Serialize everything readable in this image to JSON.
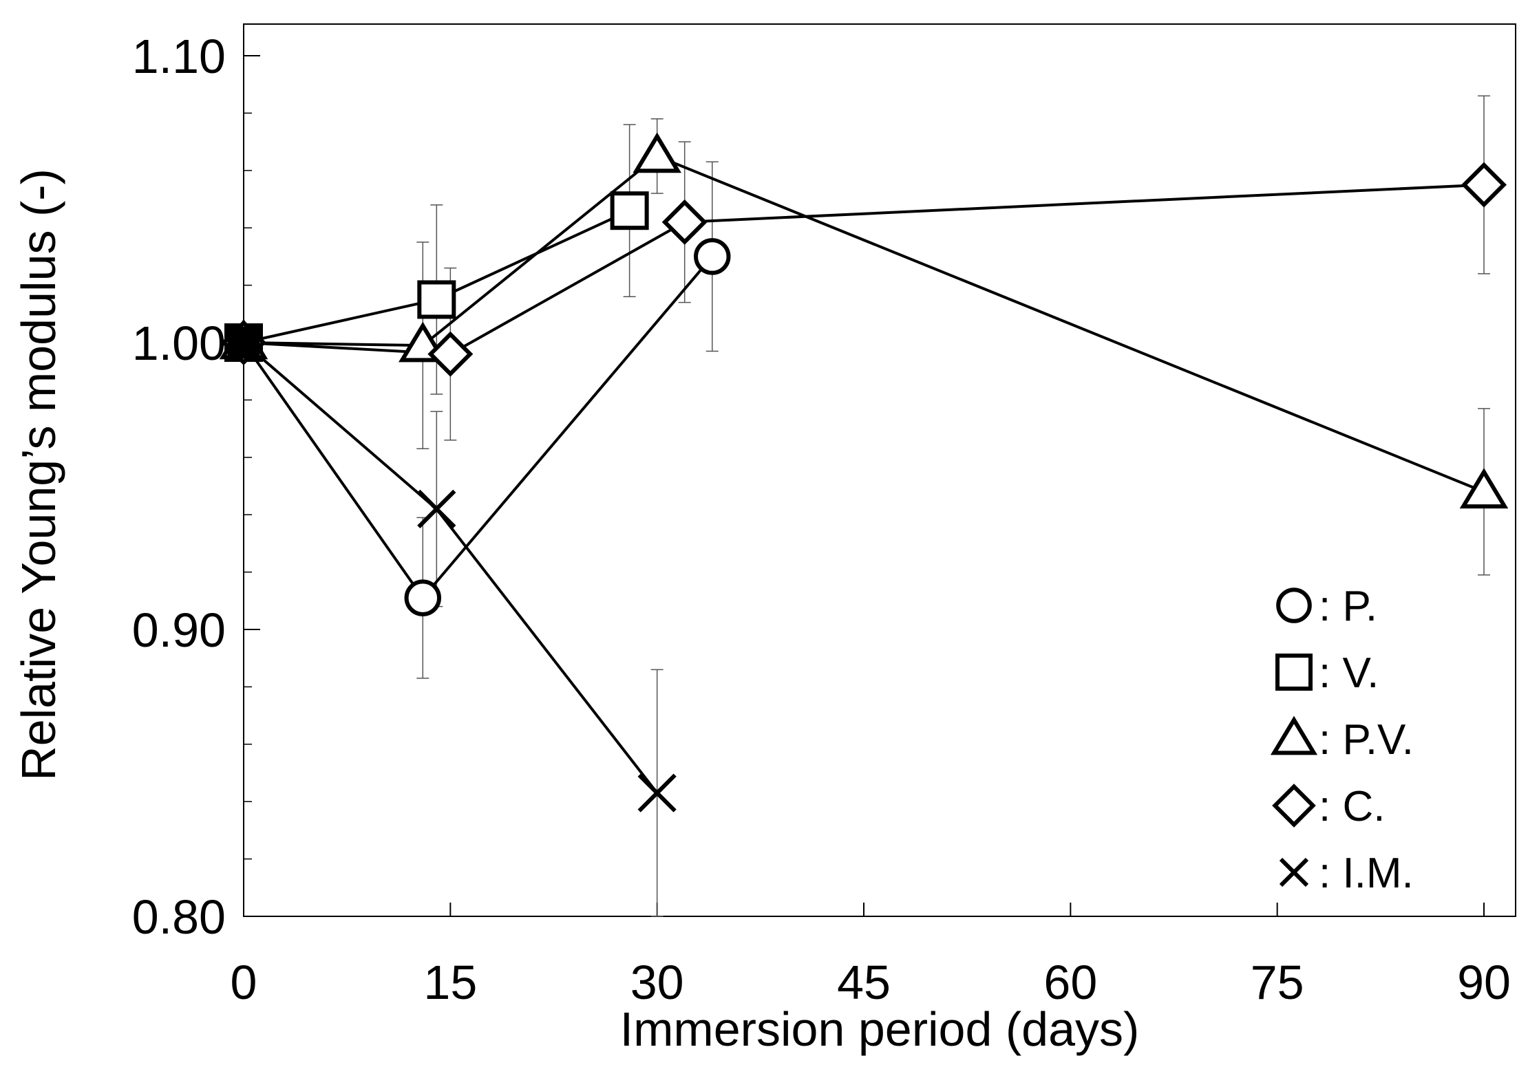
{
  "chart_data": {
    "type": "scatter",
    "title": "",
    "xlabel": "Immersion period (days)",
    "ylabel": "Relative Young’s modulus (-)",
    "xlim": [
      0,
      91
    ],
    "ylim": [
      0.8,
      1.1
    ],
    "xticks": [
      0,
      15,
      30,
      45,
      60,
      75,
      90
    ],
    "xtick_labels": [
      "0",
      "15",
      "30",
      "45",
      "60",
      "75",
      "90"
    ],
    "yticks": [
      0.8,
      0.9,
      1.0,
      1.1
    ],
    "ytick_labels": [
      "0.80",
      "0.90",
      "1.00",
      "1.10"
    ],
    "y_minor_step": 0.02,
    "grid": false,
    "legend_position": "bottom-right",
    "series": [
      {
        "name": "P.",
        "legend": ": P.",
        "marker": "circle",
        "x": [
          0,
          13,
          34
        ],
        "y": [
          1.0,
          0.911,
          1.03
        ],
        "err": [
          0,
          0.028,
          0.033
        ]
      },
      {
        "name": "V.",
        "legend": ": V.",
        "marker": "square",
        "x": [
          0,
          14,
          28
        ],
        "y": [
          1.0,
          1.015,
          1.046
        ],
        "err": [
          0,
          0.033,
          0.03
        ]
      },
      {
        "name": "P.V.",
        "legend": ": P.V.",
        "marker": "triangle",
        "x": [
          0,
          13,
          30,
          90
        ],
        "y": [
          1.0,
          0.999,
          1.065,
          0.948
        ],
        "err": [
          0,
          0.036,
          0.013,
          0.029
        ]
      },
      {
        "name": "C.",
        "legend": ": C.",
        "marker": "diamond",
        "x": [
          0,
          15,
          32,
          90
        ],
        "y": [
          1.0,
          0.996,
          1.042,
          1.055
        ],
        "err": [
          0,
          0.03,
          0.028,
          0.031
        ]
      },
      {
        "name": "I.M.",
        "legend": ": I.M.",
        "marker": "cross",
        "x": [
          0,
          14,
          30
        ],
        "y": [
          1.0,
          0.942,
          0.843
        ],
        "err": [
          0,
          0.034,
          0.043
        ]
      }
    ]
  }
}
